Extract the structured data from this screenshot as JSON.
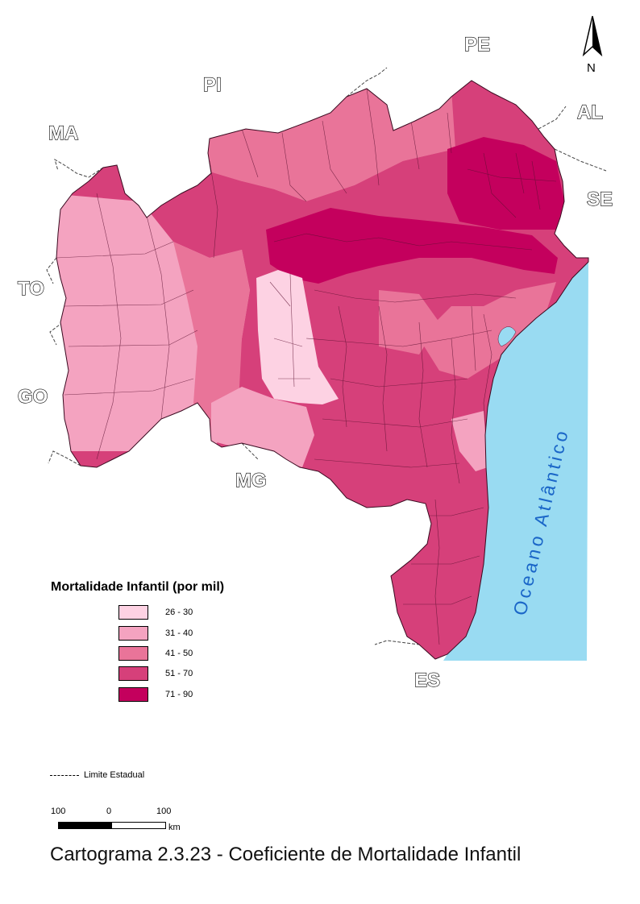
{
  "neighbor_states": [
    "PE",
    "PI",
    "AL",
    "MA",
    "SE",
    "TO",
    "GO",
    "MG",
    "ES"
  ],
  "north_arrow_label": "N",
  "ocean_label": "Oceano Atlântico",
  "legend": {
    "title": "Mortalidade Infantil (por mil)",
    "classes": [
      {
        "label": "26 - 30",
        "color": "#fdd2e3"
      },
      {
        "label": "31 - 40",
        "color": "#f4a3c0"
      },
      {
        "label": "41 - 50",
        "color": "#e97499"
      },
      {
        "label": "51 - 70",
        "color": "#d6407a"
      },
      {
        "label": "71 - 90",
        "color": "#c4005d"
      }
    ],
    "limit_label": "Limite Estadual"
  },
  "scale": {
    "left_label": "100",
    "mid_label": "0",
    "right_label": "100",
    "unit": "km"
  },
  "caption": "Cartograma 2.3.23 - Coeficiente de Mortalidade Infantil",
  "colors": {
    "ocean": "#99dbf2",
    "border": "#5a1030"
  }
}
